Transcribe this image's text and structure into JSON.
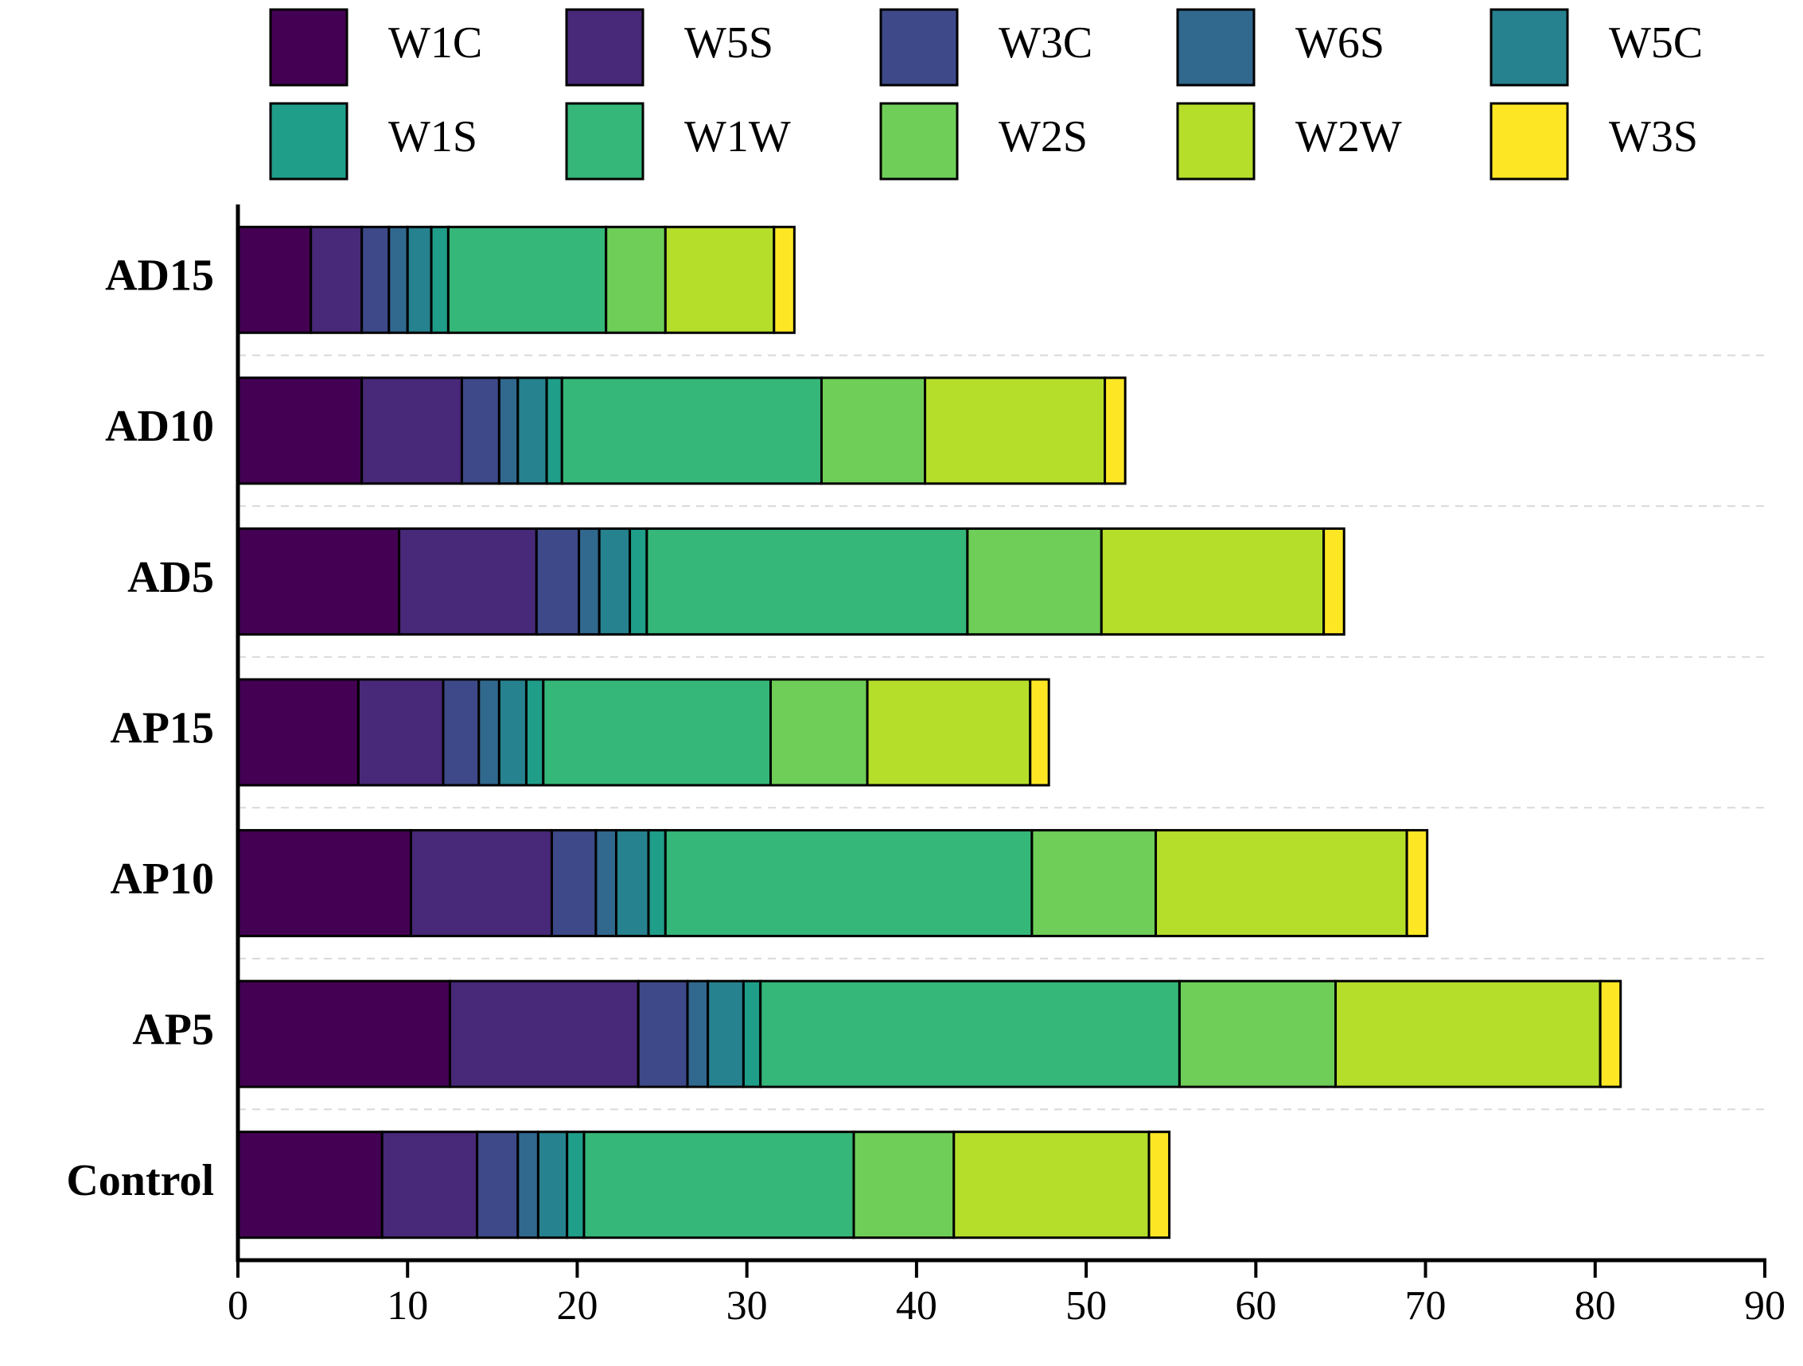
{
  "chart_data": {
    "type": "stacked-barh",
    "categories": [
      "AD15",
      "AD10",
      "AD5",
      "AP15",
      "AP10",
      "AP5",
      "Control"
    ],
    "series": [
      {
        "name": "W1C",
        "color": "#440154",
        "values": [
          4.3,
          7.3,
          9.5,
          7.1,
          10.2,
          12.5,
          8.5
        ]
      },
      {
        "name": "W5S",
        "color": "#482878",
        "values": [
          3.0,
          5.9,
          8.1,
          5.0,
          8.3,
          11.1,
          5.6
        ]
      },
      {
        "name": "W3C",
        "color": "#3e4989",
        "values": [
          1.6,
          2.2,
          2.5,
          2.1,
          2.6,
          2.9,
          2.4
        ]
      },
      {
        "name": "W6S",
        "color": "#31688e",
        "values": [
          1.1,
          1.1,
          1.2,
          1.2,
          1.2,
          1.2,
          1.2
        ]
      },
      {
        "name": "W5C",
        "color": "#26828e",
        "values": [
          1.4,
          1.7,
          1.8,
          1.6,
          1.9,
          2.1,
          1.7
        ]
      },
      {
        "name": "W1S",
        "color": "#1f9e89",
        "values": [
          1.0,
          0.9,
          1.0,
          1.0,
          1.0,
          1.0,
          1.0
        ]
      },
      {
        "name": "W1W",
        "color": "#35b779",
        "values": [
          9.3,
          15.3,
          18.9,
          13.4,
          21.6,
          24.7,
          15.9
        ]
      },
      {
        "name": "W2S",
        "color": "#6ece58",
        "values": [
          3.5,
          6.1,
          7.9,
          5.7,
          7.3,
          9.2,
          5.9
        ]
      },
      {
        "name": "W2W",
        "color": "#b5de2b",
        "values": [
          6.4,
          10.6,
          13.1,
          9.6,
          14.8,
          15.6,
          11.5
        ]
      },
      {
        "name": "W3S",
        "color": "#fde725",
        "values": [
          1.2,
          1.2,
          1.2,
          1.1,
          1.2,
          1.2,
          1.2
        ]
      }
    ],
    "xlim": [
      0,
      90
    ],
    "xticks": [
      0,
      10,
      20,
      30,
      40,
      50,
      60,
      70,
      80,
      90
    ],
    "grid": true,
    "legend": "top"
  }
}
